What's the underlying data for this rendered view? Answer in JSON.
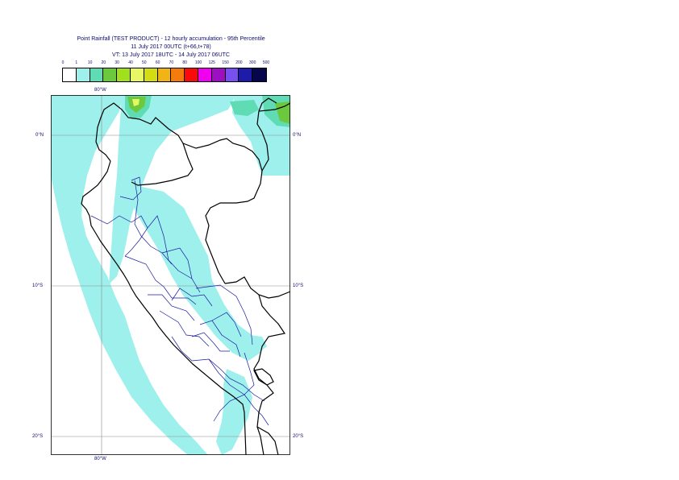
{
  "title": {
    "line1": "Point Rainfall (TEST PRODUCT) - 12 hourly accumulation - 95th Percentile",
    "line2": "11 July 2017 00UTC (t+66,t+78)",
    "line3": "VT: 13 July 2017 18UTC - 14 July 2017 06UTC"
  },
  "legend": {
    "labels": [
      "0",
      "1",
      "10",
      "20",
      "30",
      "40",
      "50",
      "60",
      "70",
      "80",
      "100",
      "125",
      "150",
      "200",
      "300",
      "500"
    ],
    "colors": [
      "#ffffff",
      "#9ef0ec",
      "#5fdcb4",
      "#6cc83c",
      "#a0e01c",
      "#e8f864",
      "#d4dc14",
      "#f0b414",
      "#f47c0c",
      "#fa0a0a",
      "#f000f0",
      "#9c10c0",
      "#7850f0",
      "#1c1ca8",
      "#06064c"
    ]
  },
  "axes": {
    "lon_top": "80°W",
    "lon_bottom": "80°W",
    "lat_labels": [
      "0°N",
      "10°S",
      "20°S"
    ]
  },
  "map_colors": {
    "light_rain": "#9ef0ec",
    "moderate_rain": "#5fdcb4",
    "green_rain": "#6cc83c",
    "yellow_rain": "#e8f864",
    "country_border": "#000000",
    "region_border": "#1a1aa0",
    "grid": "#8a8a8a"
  }
}
